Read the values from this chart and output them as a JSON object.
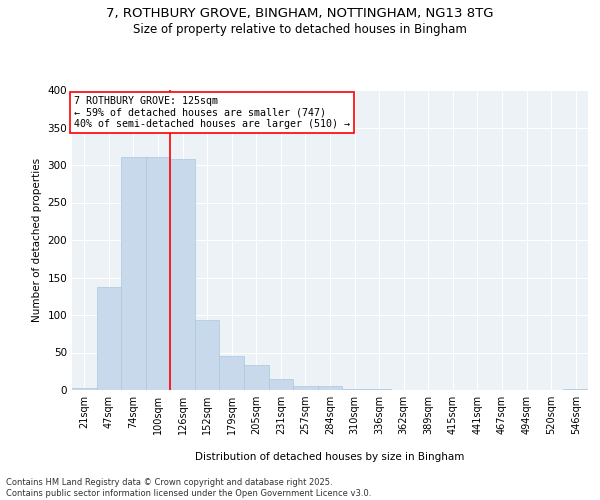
{
  "title_line1": "7, ROTHBURY GROVE, BINGHAM, NOTTINGHAM, NG13 8TG",
  "title_line2": "Size of property relative to detached houses in Bingham",
  "xlabel": "Distribution of detached houses by size in Bingham",
  "ylabel": "Number of detached properties",
  "bin_labels": [
    "21sqm",
    "47sqm",
    "74sqm",
    "100sqm",
    "126sqm",
    "152sqm",
    "179sqm",
    "205sqm",
    "231sqm",
    "257sqm",
    "284sqm",
    "310sqm",
    "336sqm",
    "362sqm",
    "389sqm",
    "415sqm",
    "441sqm",
    "467sqm",
    "494sqm",
    "520sqm",
    "546sqm"
  ],
  "bar_heights": [
    3,
    138,
    311,
    311,
    308,
    93,
    45,
    34,
    15,
    5,
    5,
    2,
    2,
    0,
    0,
    0,
    0,
    0,
    0,
    0,
    2
  ],
  "bar_color": "#c8d9eb",
  "bar_edgecolor": "#a8c8e0",
  "annotation_text": "7 ROTHBURY GROVE: 125sqm\n← 59% of detached houses are smaller (747)\n40% of semi-detached houses are larger (510) →",
  "red_line_bin": 4,
  "ylim": [
    0,
    400
  ],
  "yticks": [
    0,
    50,
    100,
    150,
    200,
    250,
    300,
    350,
    400
  ],
  "footer_line1": "Contains HM Land Registry data © Crown copyright and database right 2025.",
  "footer_line2": "Contains public sector information licensed under the Open Government Licence v3.0.",
  "bg_color": "#edf2f7"
}
